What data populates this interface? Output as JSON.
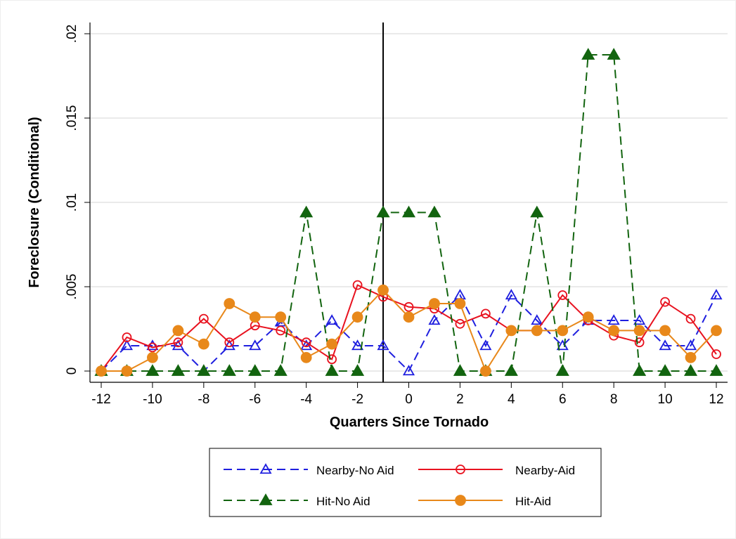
{
  "chart_data": {
    "type": "line",
    "x_label": "Quarters Since Tornado",
    "y_label": "Foreclosure (Conditional)",
    "x": [
      -12,
      -11,
      -10,
      -9,
      -8,
      -7,
      -6,
      -5,
      -4,
      -3,
      -2,
      -1,
      0,
      1,
      2,
      3,
      4,
      5,
      6,
      7,
      8,
      9,
      10,
      11,
      12
    ],
    "series": [
      {
        "name": "Nearby-No Aid",
        "color": "#1f1fdf",
        "dashed": true,
        "marker": "triangle",
        "filled": false,
        "values": [
          0,
          0.0015,
          0.0015,
          0.0015,
          0,
          0.0015,
          0.0015,
          0.0029,
          0.0015,
          0.003,
          0.0015,
          0.0015,
          0,
          0.003,
          0.0045,
          0.0015,
          0.0045,
          0.003,
          0.0015,
          0.003,
          0.003,
          0.003,
          0.0015,
          0.0015,
          0.0045
        ]
      },
      {
        "name": "Nearby-Aid",
        "color": "#e8121f",
        "dashed": false,
        "marker": "circle",
        "filled": false,
        "values": [
          0,
          0.002,
          0.0014,
          0.0017,
          0.0031,
          0.0017,
          0.0027,
          0.0024,
          0.0017,
          0.0007,
          0.0051,
          0.0044,
          0.0038,
          0.0037,
          0.0028,
          0.0034,
          0.0024,
          0.0024,
          0.0045,
          0.003,
          0.0021,
          0.0017,
          0.0041,
          0.0031,
          0.001
        ]
      },
      {
        "name": "Hit-No Aid",
        "color": "#12640f",
        "dashed": true,
        "marker": "triangle",
        "filled": true,
        "values": [
          0,
          0,
          0,
          0,
          0,
          0,
          0,
          0,
          0.0094,
          0,
          0,
          0.0094,
          0.0094,
          0.0094,
          0,
          0,
          0,
          0.0094,
          0,
          0.01875,
          0.01875,
          0,
          0,
          0,
          0
        ]
      },
      {
        "name": "Hit-Aid",
        "color": "#e8881a",
        "dashed": false,
        "marker": "circle",
        "filled": true,
        "values": [
          0,
          0,
          0.0008,
          0.0024,
          0.0016,
          0.004,
          0.0032,
          0.0032,
          0.0008,
          0.0016,
          0.0032,
          0.0048,
          0.0032,
          0.004,
          0.004,
          0,
          0.0024,
          0.0024,
          0.0024,
          0.0032,
          0.0024,
          0.0024,
          0.0024,
          0.0008,
          0.0024
        ]
      }
    ],
    "reference_x": -1,
    "xlim": [
      -12,
      12
    ],
    "xticks": [
      -12,
      -10,
      -8,
      -6,
      -4,
      -2,
      0,
      2,
      4,
      6,
      8,
      10,
      12
    ],
    "ylim": [
      0,
      0.02
    ],
    "yticks": [
      0,
      {
        "value": 0.005,
        "label": ".005"
      },
      {
        "value": 0.01,
        "label": ".01"
      },
      {
        "value": 0.015,
        "label": ".015"
      },
      {
        "value": 0.02,
        "label": ".02"
      }
    ],
    "grid": true,
    "legend": "bottom"
  }
}
